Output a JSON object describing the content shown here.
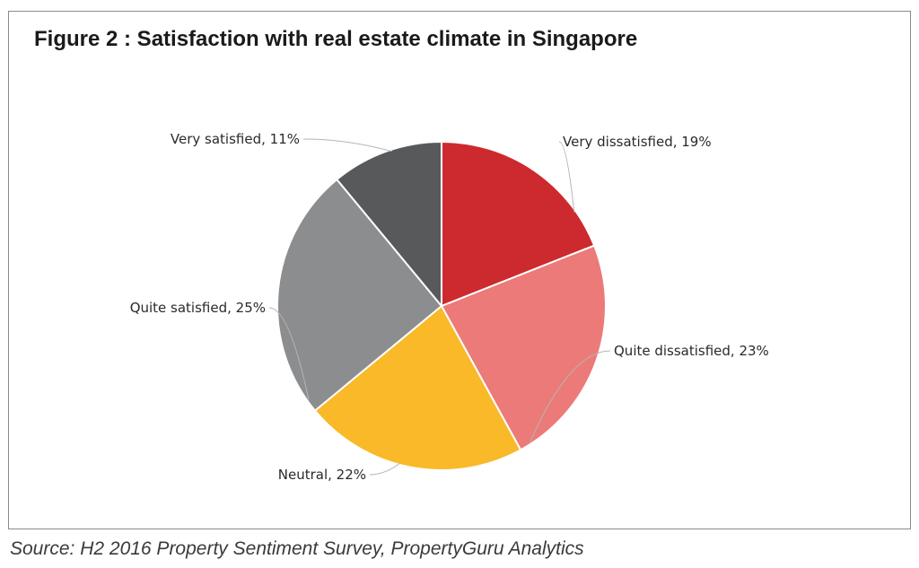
{
  "figure": {
    "title": "Figure 2 : Satisfaction with real estate climate in Singapore",
    "source": "Source: H2 2016 Property Sentiment Survey, PropertyGuru Analytics"
  },
  "chart_data": {
    "type": "pie",
    "title": "Figure 2 : Satisfaction with real estate climate in Singapore",
    "labels": [
      "Very dissatisfied, 19%",
      "Quite dissatisfied, 23%",
      "Neutral, 22%",
      "Quite satisfied, 25%",
      "Very satisfied, 11%"
    ],
    "categories": [
      "Very dissatisfied",
      "Quite dissatisfied",
      "Neutral",
      "Quite satisfied",
      "Very satisfied"
    ],
    "values": [
      19,
      23,
      22,
      25,
      11
    ],
    "unit": "%",
    "colors": [
      "#cc2a2e",
      "#ec7a78",
      "#f9b928",
      "#8c8d8f",
      "#58595b"
    ],
    "start_angle": "12 o'clock",
    "direction": "clockwise"
  }
}
